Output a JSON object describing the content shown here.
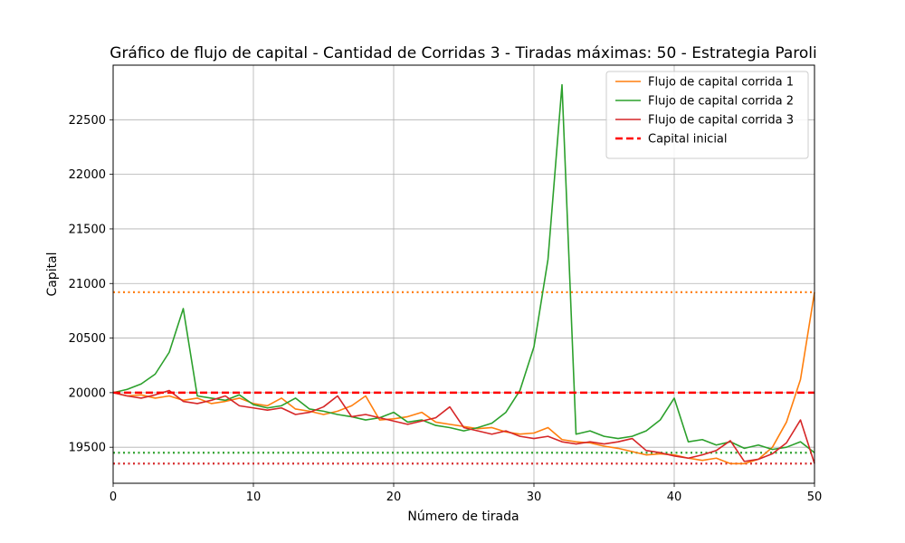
{
  "chart_data": {
    "type": "line",
    "title": "Gráfico de flujo de capital - Cantidad de Corridas 3 - Tiradas máximas: 50 - Estrategia Paroli",
    "xlabel": "Número de tirada",
    "ylabel": "Capital",
    "xlim": [
      0,
      50
    ],
    "ylim": [
      19170,
      23000
    ],
    "xticks": [
      0,
      10,
      20,
      30,
      40,
      50
    ],
    "yticks": [
      19500,
      20000,
      20500,
      21000,
      21500,
      22000,
      22500
    ],
    "grid": true,
    "legend_position": "top-right",
    "series": [
      {
        "name": "Flujo de capital corrida 1",
        "color": "#ff7f0e",
        "style": "solid",
        "x": [
          0,
          1,
          2,
          3,
          4,
          5,
          6,
          7,
          8,
          9,
          10,
          11,
          12,
          13,
          14,
          15,
          16,
          17,
          18,
          19,
          20,
          21,
          22,
          23,
          24,
          25,
          26,
          27,
          28,
          29,
          30,
          31,
          32,
          33,
          34,
          35,
          36,
          37,
          38,
          39,
          40,
          41,
          42,
          43,
          44,
          45,
          46,
          47,
          48,
          49,
          50
        ],
        "values": [
          20000,
          19970,
          19980,
          19950,
          19970,
          19930,
          19950,
          19900,
          19920,
          19950,
          19900,
          19880,
          19950,
          19850,
          19830,
          19800,
          19830,
          19880,
          19970,
          19750,
          19760,
          19780,
          19820,
          19730,
          19710,
          19690,
          19670,
          19680,
          19640,
          19620,
          19630,
          19680,
          19570,
          19550,
          19540,
          19510,
          19490,
          19460,
          19430,
          19440,
          19430,
          19400,
          19380,
          19400,
          19350,
          19350,
          19390,
          19500,
          19730,
          20120,
          20920
        ]
      },
      {
        "name": "Flujo de capital corrida 2",
        "color": "#2ca02c",
        "style": "solid",
        "x": [
          0,
          1,
          2,
          3,
          4,
          5,
          6,
          7,
          8,
          9,
          10,
          11,
          12,
          13,
          14,
          15,
          16,
          17,
          18,
          19,
          20,
          21,
          22,
          23,
          24,
          25,
          26,
          27,
          28,
          29,
          30,
          31,
          32,
          33,
          34,
          35,
          36,
          37,
          38,
          39,
          40,
          41,
          42,
          43,
          44,
          45,
          46,
          47,
          48,
          49,
          50
        ],
        "values": [
          20000,
          20030,
          20080,
          20170,
          20370,
          20770,
          19970,
          19950,
          19930,
          19980,
          19890,
          19860,
          19880,
          19950,
          19850,
          19830,
          19800,
          19780,
          19750,
          19770,
          19820,
          19730,
          19750,
          19700,
          19680,
          19650,
          19680,
          19720,
          19820,
          20020,
          20420,
          21220,
          22820,
          19620,
          19650,
          19600,
          19580,
          19600,
          19650,
          19750,
          19950,
          19550,
          19570,
          19520,
          19550,
          19490,
          19520,
          19480,
          19500,
          19550,
          19450
        ]
      },
      {
        "name": "Flujo de capital corrida 3",
        "color": "#d62728",
        "style": "solid",
        "x": [
          0,
          1,
          2,
          3,
          4,
          5,
          6,
          7,
          8,
          9,
          10,
          11,
          12,
          13,
          14,
          15,
          16,
          17,
          18,
          19,
          20,
          21,
          22,
          23,
          24,
          25,
          26,
          27,
          28,
          29,
          30,
          31,
          32,
          33,
          34,
          35,
          36,
          37,
          38,
          39,
          40,
          41,
          42,
          43,
          44,
          45,
          46,
          47,
          48,
          49,
          50
        ],
        "values": [
          20000,
          19970,
          19950,
          19980,
          20020,
          19920,
          19900,
          19930,
          19970,
          19880,
          19860,
          19840,
          19860,
          19800,
          19820,
          19870,
          19970,
          19780,
          19800,
          19770,
          19740,
          19710,
          19740,
          19770,
          19870,
          19680,
          19650,
          19620,
          19650,
          19600,
          19580,
          19600,
          19550,
          19530,
          19550,
          19530,
          19550,
          19580,
          19470,
          19450,
          19420,
          19400,
          19430,
          19470,
          19560,
          19370,
          19390,
          19440,
          19540,
          19750,
          19350
        ]
      },
      {
        "name": "Capital inicial",
        "color": "#ff0000",
        "style": "dashed",
        "x": [
          0,
          50
        ],
        "values": [
          20000,
          20000
        ]
      }
    ],
    "reference_lines": [
      {
        "y": 20920,
        "color": "#ff7f0e",
        "style": "dotted"
      },
      {
        "y": 19450,
        "color": "#2ca02c",
        "style": "dotted"
      },
      {
        "y": 19350,
        "color": "#d62728",
        "style": "dotted"
      }
    ]
  }
}
